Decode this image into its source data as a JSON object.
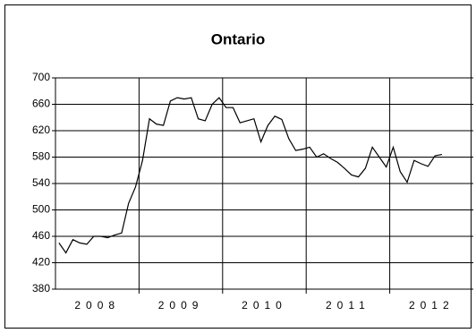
{
  "chart_data": {
    "type": "line",
    "title": "Ontario",
    "categories": [
      null,
      null,
      null,
      null,
      null,
      null,
      "2008",
      null,
      null,
      null,
      null,
      null,
      null,
      null,
      null,
      null,
      null,
      null,
      "2009",
      null,
      null,
      null,
      null,
      null,
      null,
      null,
      null,
      null,
      null,
      null,
      "2010",
      null,
      null,
      null,
      null,
      null,
      null,
      null,
      null,
      null,
      null,
      null,
      "2011",
      null,
      null,
      null,
      null,
      null,
      null,
      null,
      null,
      null,
      null,
      null,
      "2012",
      null
    ],
    "series": [
      {
        "name": "Ontario",
        "color": "#000000",
        "values": [
          450,
          435,
          455,
          450,
          448,
          460,
          460,
          458,
          462,
          465,
          510,
          535,
          575,
          638,
          630,
          628,
          665,
          670,
          668,
          670,
          638,
          635,
          660,
          670,
          655,
          655,
          632,
          635,
          638,
          603,
          628,
          642,
          637,
          608,
          590,
          592,
          595,
          580,
          585,
          578,
          572,
          563,
          553,
          550,
          563,
          595,
          580,
          565,
          595,
          558,
          542,
          575,
          570,
          566,
          582,
          584
        ]
      }
    ],
    "ylim": [
      380,
      700
    ],
    "yticks": [
      380,
      420,
      460,
      500,
      540,
      580,
      620,
      660,
      700
    ],
    "grid": true
  }
}
